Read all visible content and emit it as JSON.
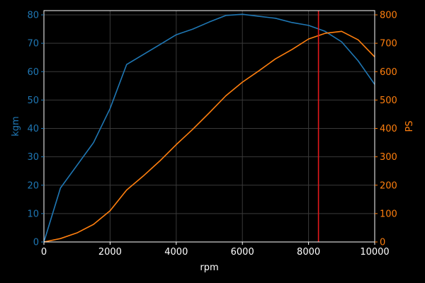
{
  "chart_data": {
    "type": "line",
    "xlabel": "rpm",
    "ylabel_left": "kgm",
    "ylabel_right": "PS",
    "xlim": [
      0,
      10000
    ],
    "ylim_left": [
      0,
      81.5
    ],
    "ylim_right": [
      0,
      815
    ],
    "x_ticks": [
      0,
      2000,
      4000,
      6000,
      8000,
      10000
    ],
    "y_ticks_left": [
      0,
      10,
      20,
      30,
      40,
      50,
      60,
      70,
      80
    ],
    "y_ticks_right": [
      0,
      100,
      200,
      300,
      400,
      500,
      600,
      700,
      800
    ],
    "grid": true,
    "colors": {
      "background": "#000000",
      "axes": "#ffffff",
      "grid": "#3a3a3a",
      "torque": "#1f77b4",
      "power": "#ff7f0e",
      "marker": "#e41a1c"
    },
    "series": [
      {
        "axis": "left",
        "x": [
          0,
          500,
          1000,
          1500,
          2000,
          2500,
          3000,
          3500,
          4000,
          4500,
          5000,
          5500,
          6000,
          6500,
          7000,
          7500,
          8000,
          8500,
          9000,
          9500,
          10000
        ],
        "values": [
          0,
          19,
          27,
          35,
          47,
          62.5,
          66,
          69.5,
          73,
          75,
          77.5,
          79.8,
          80.2,
          79.5,
          78.8,
          77.3,
          76.3,
          74.2,
          70.5,
          63.8,
          55.5
        ]
      },
      {
        "axis": "right",
        "x": [
          0,
          500,
          1000,
          1500,
          2000,
          2500,
          3000,
          3500,
          4000,
          4500,
          5000,
          5500,
          6000,
          6500,
          7000,
          7500,
          8000,
          8500,
          9000,
          9500,
          10000
        ],
        "values": [
          0,
          12,
          32,
          62,
          110,
          183,
          232,
          285,
          343,
          397,
          455,
          515,
          563,
          603,
          645,
          678,
          715,
          735,
          742,
          712,
          652
        ]
      }
    ],
    "vertical_line": {
      "x": 8300
    }
  }
}
